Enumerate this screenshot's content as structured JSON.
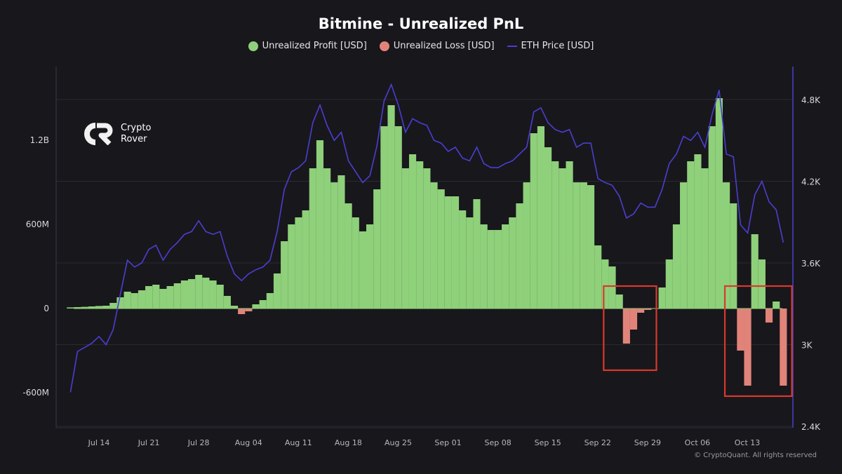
{
  "chart_data": {
    "type": "bar+line",
    "title": "Bitmine - Unrealized PnL",
    "legend": [
      {
        "name": "Unrealized Profit [USD]",
        "color": "#8fd07a",
        "shape": "dot"
      },
      {
        "name": "Unrealized Loss [USD]",
        "color": "#e2837a",
        "shape": "dot"
      },
      {
        "name": "ETH Price [USD]",
        "color": "#4a3fd0",
        "shape": "line"
      }
    ],
    "legend_position": "top",
    "grid": true,
    "left_axis": {
      "ticks": [
        "-600M",
        "0",
        "600M",
        "1.2B"
      ],
      "tick_values": [
        -600,
        0,
        600,
        1200
      ],
      "unit": "M USD",
      "range": [
        -850,
        1700
      ]
    },
    "right_axis": {
      "ticks": [
        "2.4K",
        "3K",
        "3.6K",
        "4.2K",
        "4.8K"
      ],
      "tick_values": [
        2400,
        3000,
        3600,
        4200,
        4800
      ],
      "range": [
        2400,
        5000
      ]
    },
    "x_ticks": [
      "Jul 14",
      "Jul 21",
      "Jul 28",
      "Aug 04",
      "Aug 11",
      "Aug 18",
      "Aug 25",
      "Sep 01",
      "Sep 08",
      "Sep 15",
      "Sep 22",
      "Sep 29",
      "Oct 06",
      "Oct 13"
    ],
    "x": [
      "Jul 10",
      "Jul 11",
      "Jul 12",
      "Jul 13",
      "Jul 14",
      "Jul 15",
      "Jul 16",
      "Jul 17",
      "Jul 18",
      "Jul 19",
      "Jul 20",
      "Jul 21",
      "Jul 22",
      "Jul 23",
      "Jul 24",
      "Jul 25",
      "Jul 26",
      "Jul 27",
      "Jul 28",
      "Jul 29",
      "Jul 30",
      "Jul 31",
      "Aug 01",
      "Aug 02",
      "Aug 03",
      "Aug 04",
      "Aug 05",
      "Aug 06",
      "Aug 07",
      "Aug 08",
      "Aug 09",
      "Aug 10",
      "Aug 11",
      "Aug 12",
      "Aug 13",
      "Aug 14",
      "Aug 15",
      "Aug 16",
      "Aug 17",
      "Aug 18",
      "Aug 19",
      "Aug 20",
      "Aug 21",
      "Aug 22",
      "Aug 23",
      "Aug 24",
      "Aug 25",
      "Aug 26",
      "Aug 27",
      "Aug 28",
      "Aug 29",
      "Aug 30",
      "Aug 31",
      "Sep 01",
      "Sep 02",
      "Sep 03",
      "Sep 04",
      "Sep 05",
      "Sep 06",
      "Sep 07",
      "Sep 08",
      "Sep 09",
      "Sep 10",
      "Sep 11",
      "Sep 12",
      "Sep 13",
      "Sep 14",
      "Sep 15",
      "Sep 16",
      "Sep 17",
      "Sep 18",
      "Sep 19",
      "Sep 20",
      "Sep 21",
      "Sep 22",
      "Sep 23",
      "Sep 24",
      "Sep 25",
      "Sep 26",
      "Sep 27",
      "Sep 28",
      "Sep 29",
      "Sep 30",
      "Oct 01",
      "Oct 02",
      "Oct 03",
      "Oct 04",
      "Oct 05",
      "Oct 06",
      "Oct 07",
      "Oct 08",
      "Oct 09",
      "Oct 10",
      "Oct 11",
      "Oct 12",
      "Oct 13",
      "Oct 14",
      "Oct 15",
      "Oct 16",
      "Oct 17",
      "Oct 18"
    ],
    "series": [
      {
        "name": "Unrealized Profit [USD]",
        "axis": "left",
        "unit": "M USD",
        "values": [
          8,
          10,
          12,
          15,
          18,
          20,
          40,
          80,
          120,
          110,
          130,
          160,
          170,
          140,
          160,
          180,
          200,
          210,
          240,
          220,
          200,
          170,
          90,
          20,
          0,
          0,
          30,
          60,
          110,
          250,
          480,
          600,
          650,
          700,
          1000,
          1200,
          1000,
          900,
          950,
          750,
          650,
          550,
          600,
          850,
          1300,
          1450,
          1300,
          1000,
          1100,
          1050,
          1000,
          900,
          850,
          800,
          800,
          700,
          650,
          780,
          600,
          560,
          560,
          600,
          650,
          750,
          900,
          1250,
          1300,
          1150,
          1050,
          1000,
          1050,
          900,
          900,
          880,
          450,
          350,
          300,
          100,
          0,
          0,
          0,
          0,
          0,
          150,
          350,
          600,
          900,
          1050,
          1100,
          1000,
          1300,
          1500,
          900,
          750,
          0,
          0,
          530,
          350,
          0,
          50,
          0
        ]
      },
      {
        "name": "Unrealized Loss [USD]",
        "axis": "left",
        "unit": "M USD",
        "values": [
          0,
          0,
          0,
          0,
          0,
          0,
          0,
          0,
          0,
          0,
          0,
          0,
          0,
          0,
          0,
          0,
          0,
          0,
          0,
          0,
          0,
          0,
          0,
          0,
          -40,
          -20,
          0,
          0,
          0,
          0,
          0,
          0,
          0,
          0,
          0,
          0,
          0,
          0,
          0,
          0,
          0,
          0,
          0,
          0,
          0,
          0,
          0,
          0,
          0,
          0,
          0,
          0,
          0,
          0,
          0,
          0,
          0,
          0,
          0,
          0,
          0,
          0,
          0,
          0,
          0,
          0,
          0,
          0,
          0,
          0,
          0,
          0,
          0,
          0,
          0,
          0,
          0,
          0,
          -250,
          -150,
          -30,
          -10,
          0,
          0,
          0,
          0,
          0,
          0,
          0,
          0,
          0,
          0,
          0,
          0,
          -300,
          -550,
          0,
          0,
          -100,
          0,
          -550
        ]
      },
      {
        "name": "ETH Price [USD]",
        "axis": "right",
        "values": [
          2650,
          2950,
          2980,
          3010,
          3060,
          3000,
          3110,
          3370,
          3620,
          3570,
          3600,
          3700,
          3730,
          3620,
          3700,
          3750,
          3810,
          3830,
          3910,
          3830,
          3810,
          3830,
          3650,
          3520,
          3470,
          3520,
          3550,
          3570,
          3620,
          3830,
          4140,
          4270,
          4300,
          4350,
          4630,
          4760,
          4610,
          4500,
          4560,
          4350,
          4270,
          4190,
          4240,
          4460,
          4790,
          4910,
          4760,
          4560,
          4660,
          4630,
          4610,
          4500,
          4480,
          4420,
          4450,
          4370,
          4350,
          4450,
          4330,
          4300,
          4300,
          4330,
          4350,
          4400,
          4450,
          4710,
          4740,
          4630,
          4580,
          4560,
          4580,
          4450,
          4480,
          4480,
          4220,
          4190,
          4170,
          4090,
          3930,
          3960,
          4040,
          4010,
          4010,
          4140,
          4330,
          4400,
          4530,
          4500,
          4560,
          4450,
          4690,
          4870,
          4400,
          4380,
          3880,
          3820,
          4100,
          4200,
          4050,
          3990,
          3750
        ]
      }
    ],
    "annotations": [
      {
        "type": "highlight-box",
        "color": "#d9392b",
        "from": "Sep 24",
        "to": "Sep 29"
      },
      {
        "type": "highlight-box",
        "color": "#d9392b",
        "from": "Oct 11",
        "to": "Oct 18"
      }
    ]
  },
  "logo": {
    "line1": "Crypto",
    "line2": "Rover"
  },
  "credit": "© CryptoQuant. All rights reserved"
}
